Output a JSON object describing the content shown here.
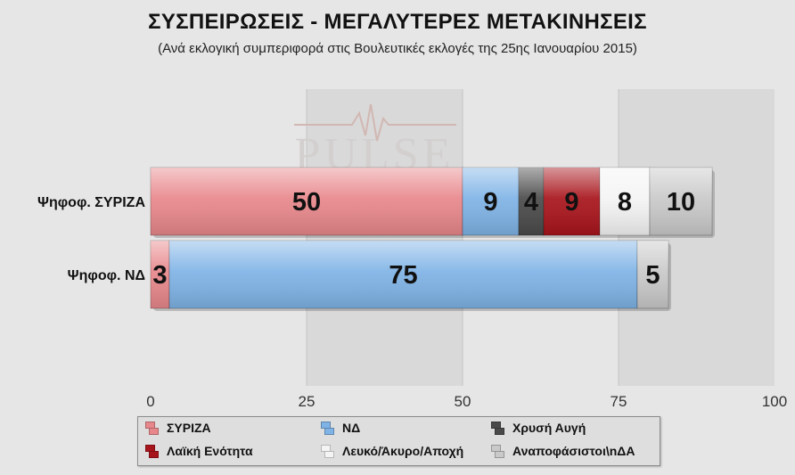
{
  "chart_data": {
    "type": "bar",
    "orientation": "horizontal",
    "stacked": true,
    "title": "ΣΥΣΠΕΙΡΩΣΕΙΣ - ΜΕΓΑΛΥΤΕΡΕΣ ΜΕΤΑΚΙΝΗΣΕΙΣ",
    "subtitle": "(Ανά εκλογική συμπεριφορά στις Βουλευτικές εκλογές της 25ης Ιανουαρίου 2015)",
    "categories": [
      "Ψηφοφ. ΣΥΡΙΖΑ",
      "Ψηφοφ. ΝΔ"
    ],
    "series": [
      {
        "name": "ΣΥΡΙΖΑ",
        "color": "#e8878b",
        "values": [
          50,
          3
        ]
      },
      {
        "name": "ΝΔ",
        "color": "#7fb3e6",
        "values": [
          9,
          75
        ]
      },
      {
        "name": "Χρυσή Αυγή",
        "color": "#4a4a4a",
        "values": [
          4,
          0
        ]
      },
      {
        "name": "Λαϊκή Ενότητα",
        "color": "#a8141b",
        "values": [
          9,
          0
        ]
      },
      {
        "name": "Λευκό/Άκυρο/Αποχή",
        "color": "#f4f4f4",
        "values": [
          8,
          0
        ]
      },
      {
        "name": "Αναποφάσιστοι\\nΔΑ",
        "color": "#c9c9c9",
        "values": [
          10,
          5
        ]
      }
    ],
    "xlim": [
      0,
      100
    ],
    "xticks": [
      "0",
      "25",
      "50",
      "75",
      "100"
    ],
    "grid": true,
    "legend_position": "bottom",
    "watermark": "PULSE"
  }
}
